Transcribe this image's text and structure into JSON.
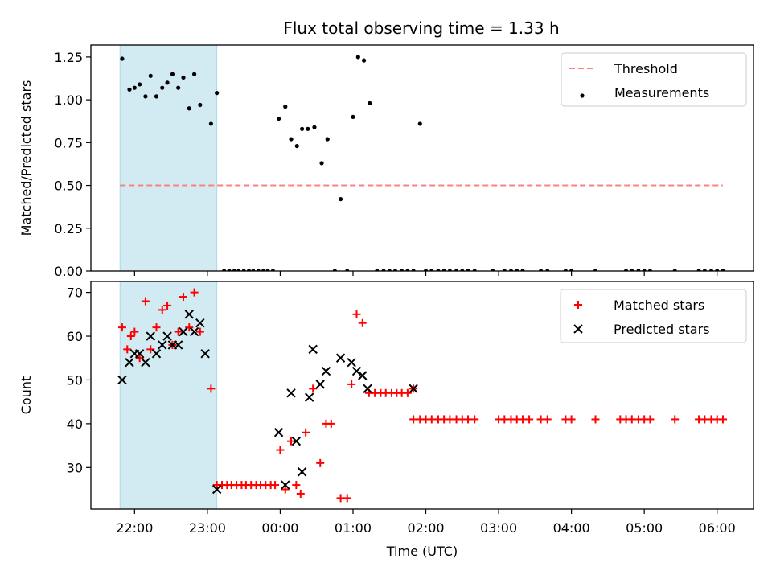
{
  "chart_data": [
    {
      "type": "scatter",
      "title": "Flux total observing time = 1.33 h",
      "xlabel": "",
      "ylabel": "Matched/Predicted stars",
      "xlim": [
        21.4,
        30.5
      ],
      "ylim": [
        0,
        1.32
      ],
      "yticks": [
        0.0,
        0.25,
        0.5,
        0.75,
        1.0,
        1.25
      ],
      "ytick_labels": [
        "0.00",
        "0.25",
        "0.50",
        "0.75",
        "1.00",
        "1.25"
      ],
      "shaded_region": {
        "x": [
          21.8,
          23.13
        ],
        "color": "#add8e6"
      },
      "threshold": {
        "name": "Threshold",
        "y": 0.5,
        "x": [
          21.8,
          30.08
        ],
        "color": "#ff8080"
      },
      "legend": {
        "location": "top-right",
        "entries": [
          "Threshold",
          "Measurements"
        ]
      },
      "series": [
        {
          "name": "Measurements",
          "color": "#000000",
          "x": [
            21.83,
            21.93,
            22.0,
            22.07,
            22.15,
            22.22,
            22.3,
            22.38,
            22.45,
            22.52,
            22.6,
            22.67,
            22.75,
            22.82,
            22.9,
            23.05,
            23.13,
            23.23,
            23.3,
            23.37,
            23.43,
            23.5,
            23.57,
            23.63,
            23.7,
            23.77,
            23.83,
            23.9,
            23.98,
            24.07,
            24.15,
            24.23,
            24.3,
            24.38,
            24.47,
            24.57,
            24.65,
            24.75,
            24.83,
            24.92,
            25.0,
            25.07,
            25.15,
            25.23,
            25.33,
            25.42,
            25.5,
            25.58,
            25.67,
            25.75,
            25.83,
            25.92,
            26.0,
            26.08,
            26.17,
            26.25,
            26.33,
            26.42,
            26.5,
            26.58,
            26.67,
            26.92,
            27.08,
            27.17,
            27.25,
            27.33,
            27.58,
            27.67,
            27.92,
            28.0,
            28.33,
            28.75,
            28.83,
            28.92,
            29.0,
            29.08,
            29.42,
            29.75,
            29.83,
            29.92,
            30.0,
            30.08
          ],
          "y": [
            1.24,
            1.06,
            1.07,
            1.09,
            1.02,
            1.14,
            1.02,
            1.07,
            1.1,
            1.15,
            1.07,
            1.13,
            0.95,
            1.15,
            0.97,
            0.86,
            1.04,
            0.0,
            0.0,
            0.0,
            0.0,
            0.0,
            0.0,
            0.0,
            0.0,
            0.0,
            0.0,
            0.0,
            0.89,
            0.96,
            0.77,
            0.73,
            0.83,
            0.83,
            0.84,
            0.63,
            0.77,
            0.0,
            0.42,
            0.0,
            0.9,
            1.25,
            1.23,
            0.98,
            0.0,
            0.0,
            0.0,
            0.0,
            0.0,
            0.0,
            0.0,
            0.86,
            0.0,
            0.0,
            0.0,
            0.0,
            0.0,
            0.0,
            0.0,
            0.0,
            0.0,
            0.0,
            0.0,
            0.0,
            0.0,
            0.0,
            0.0,
            0.0,
            0.0,
            0.0,
            0.0,
            0.0,
            0.0,
            0.0,
            0.0,
            0.0,
            0.0,
            0.0,
            0.0,
            0.0,
            0.0,
            0.0
          ]
        }
      ]
    },
    {
      "type": "scatter",
      "title": "",
      "xlabel": "Time (UTC)",
      "ylabel": "Count",
      "xlim": [
        21.4,
        30.5
      ],
      "ylim": [
        20.5,
        72.5
      ],
      "yticks": [
        30,
        40,
        50,
        60,
        70
      ],
      "ytick_labels": [
        "30",
        "40",
        "50",
        "60",
        "70"
      ],
      "xticks": [
        22,
        23,
        24,
        25,
        26,
        27,
        28,
        29,
        30
      ],
      "xtick_labels": [
        "22:00",
        "23:00",
        "00:00",
        "01:00",
        "02:00",
        "03:00",
        "04:00",
        "05:00",
        "06:00"
      ],
      "shaded_region": {
        "x": [
          21.8,
          23.13
        ],
        "color": "#add8e6"
      },
      "legend": {
        "location": "top-right",
        "entries": [
          "Matched stars",
          "Predicted stars"
        ]
      },
      "series": [
        {
          "name": "Matched stars",
          "marker": "+",
          "color": "#ff0000",
          "x": [
            21.83,
            21.9,
            21.95,
            22.0,
            22.07,
            22.15,
            22.22,
            22.3,
            22.38,
            22.45,
            22.52,
            22.6,
            22.67,
            22.75,
            22.82,
            22.9,
            23.05,
            23.13,
            23.2,
            23.27,
            23.33,
            23.4,
            23.47,
            23.53,
            23.6,
            23.67,
            23.73,
            23.8,
            23.87,
            23.93,
            24.0,
            24.07,
            24.15,
            24.22,
            24.28,
            24.35,
            24.45,
            24.55,
            24.63,
            24.7,
            24.83,
            24.92,
            24.98,
            25.05,
            25.13,
            25.22,
            25.3,
            25.38,
            25.45,
            25.53,
            25.6,
            25.67,
            25.75,
            25.83,
            25.83,
            25.92,
            26.0,
            26.08,
            26.17,
            26.25,
            26.33,
            26.42,
            26.5,
            26.58,
            26.67,
            27.0,
            27.08,
            27.17,
            27.25,
            27.33,
            27.42,
            27.58,
            27.67,
            27.92,
            28.0,
            28.33,
            28.67,
            28.75,
            28.83,
            28.92,
            29.0,
            29.08,
            29.42,
            29.75,
            29.83,
            29.92,
            30.0,
            30.08
          ],
          "y": [
            62,
            57,
            60,
            61,
            55,
            68,
            57,
            62,
            66,
            67,
            58,
            61,
            69,
            62,
            70,
            61,
            48,
            26,
            26,
            26,
            26,
            26,
            26,
            26,
            26,
            26,
            26,
            26,
            26,
            26,
            34,
            25,
            36,
            26,
            24,
            38,
            48,
            31,
            40,
            40,
            23,
            23,
            49,
            65,
            63,
            47,
            47,
            47,
            47,
            47,
            47,
            47,
            47,
            48,
            41,
            41,
            41,
            41,
            41,
            41,
            41,
            41,
            41,
            41,
            41,
            41,
            41,
            41,
            41,
            41,
            41,
            41,
            41,
            41,
            41,
            41,
            41,
            41,
            41,
            41,
            41,
            41,
            41,
            41,
            41,
            41,
            41,
            41
          ]
        },
        {
          "name": "Predicted stars",
          "marker": "x",
          "color": "#000000",
          "x": [
            21.83,
            21.93,
            22.0,
            22.07,
            22.15,
            22.22,
            22.3,
            22.38,
            22.45,
            22.52,
            22.6,
            22.67,
            22.75,
            22.82,
            22.9,
            22.97,
            23.13,
            23.98,
            24.07,
            24.15,
            24.22,
            24.3,
            24.4,
            24.45,
            24.55,
            24.63,
            24.83,
            24.98,
            25.05,
            25.13,
            25.2,
            25.83
          ],
          "y": [
            50,
            54,
            56,
            56,
            54,
            60,
            56,
            58,
            60,
            58,
            58,
            61,
            65,
            61,
            63,
            56,
            25,
            38,
            26,
            47,
            36,
            29,
            46,
            57,
            49,
            52,
            55,
            54,
            52,
            51,
            48,
            48
          ]
        }
      ]
    }
  ]
}
